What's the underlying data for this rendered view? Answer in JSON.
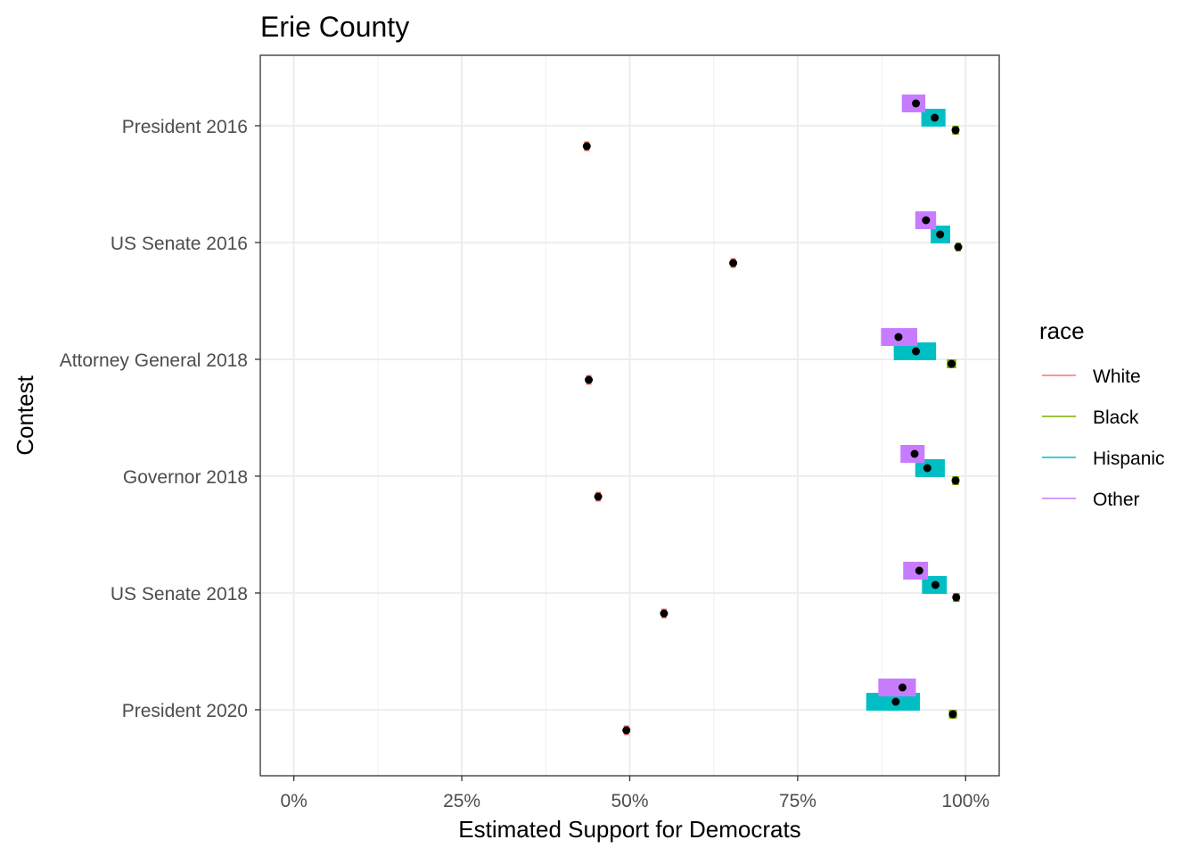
{
  "chart_data": {
    "type": "scatter",
    "title": "Erie County",
    "xlabel": "Estimated Support for Democrats",
    "ylabel": "Contest",
    "xlim": [
      -0.05,
      1.05
    ],
    "x_ticks": [
      0,
      0.25,
      0.5,
      0.75,
      1.0
    ],
    "x_tick_labels": [
      "0%",
      "25%",
      "50%",
      "75%",
      "100%"
    ],
    "grid": true,
    "legend": {
      "title": "race",
      "placement": "right",
      "entries": [
        {
          "name": "White",
          "color": "#F8766D"
        },
        {
          "name": "Black",
          "color": "#7CAE00"
        },
        {
          "name": "Hispanic",
          "color": "#00BFC4"
        },
        {
          "name": "Other",
          "color": "#C77CFF"
        }
      ]
    },
    "point_color": "#000000",
    "contests": [
      "President 2016",
      "US Senate 2016",
      "Attorney General 2018",
      "Governor 2018",
      "US Senate 2018",
      "President 2020"
    ],
    "series": [
      {
        "name": "White",
        "values": [
          {
            "contest": "President 2016",
            "estimate": 0.436,
            "low": 0.432,
            "high": 0.44
          },
          {
            "contest": "US Senate 2016",
            "estimate": 0.654,
            "low": 0.651,
            "high": 0.657
          },
          {
            "contest": "Attorney General 2018",
            "estimate": 0.439,
            "low": 0.435,
            "high": 0.443
          },
          {
            "contest": "Governor 2018",
            "estimate": 0.453,
            "low": 0.45,
            "high": 0.456
          },
          {
            "contest": "US Senate 2018",
            "estimate": 0.551,
            "low": 0.547,
            "high": 0.555
          },
          {
            "contest": "President 2020",
            "estimate": 0.495,
            "low": 0.491,
            "high": 0.499
          }
        ]
      },
      {
        "name": "Black",
        "values": [
          {
            "contest": "President 2016",
            "estimate": 0.985,
            "low": 0.98,
            "high": 0.99
          },
          {
            "contest": "US Senate 2016",
            "estimate": 0.989,
            "low": 0.986,
            "high": 0.992
          },
          {
            "contest": "Attorney General 2018",
            "estimate": 0.979,
            "low": 0.972,
            "high": 0.986
          },
          {
            "contest": "Governor 2018",
            "estimate": 0.985,
            "low": 0.98,
            "high": 0.99
          },
          {
            "contest": "US Senate 2018",
            "estimate": 0.986,
            "low": 0.981,
            "high": 0.991
          },
          {
            "contest": "President 2020",
            "estimate": 0.981,
            "low": 0.975,
            "high": 0.987
          }
        ]
      },
      {
        "name": "Hispanic",
        "values": [
          {
            "contest": "President 2016",
            "estimate": 0.954,
            "low": 0.934,
            "high": 0.97
          },
          {
            "contest": "US Senate 2016",
            "estimate": 0.962,
            "low": 0.948,
            "high": 0.977
          },
          {
            "contest": "Attorney General 2018",
            "estimate": 0.926,
            "low": 0.893,
            "high": 0.956
          },
          {
            "contest": "Governor 2018",
            "estimate": 0.943,
            "low": 0.925,
            "high": 0.969
          },
          {
            "contest": "US Senate 2018",
            "estimate": 0.955,
            "low": 0.935,
            "high": 0.972
          },
          {
            "contest": "President 2020",
            "estimate": 0.896,
            "low": 0.852,
            "high": 0.932
          }
        ]
      },
      {
        "name": "Other",
        "values": [
          {
            "contest": "President 2016",
            "estimate": 0.926,
            "low": 0.905,
            "high": 0.94
          },
          {
            "contest": "US Senate 2016",
            "estimate": 0.941,
            "low": 0.925,
            "high": 0.956
          },
          {
            "contest": "Attorney General 2018",
            "estimate": 0.9,
            "low": 0.874,
            "high": 0.928
          },
          {
            "contest": "Governor 2018",
            "estimate": 0.924,
            "low": 0.903,
            "high": 0.939
          },
          {
            "contest": "US Senate 2018",
            "estimate": 0.931,
            "low": 0.907,
            "high": 0.944
          },
          {
            "contest": "President 2020",
            "estimate": 0.906,
            "low": 0.87,
            "high": 0.926
          }
        ]
      }
    ]
  }
}
